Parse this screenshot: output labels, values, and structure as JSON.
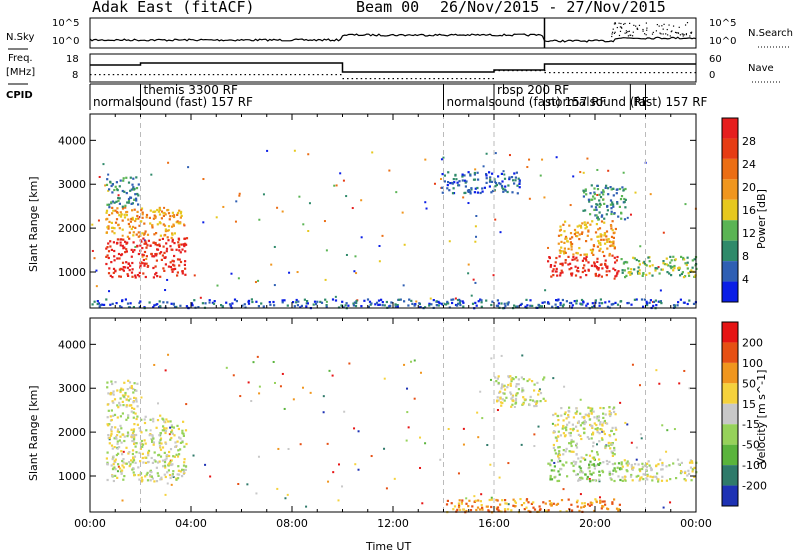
{
  "header": {
    "title": "Adak East (fitACF)",
    "beam": "Beam 00",
    "dates": "26/Nov/2015 - 27/Nov/2015"
  },
  "panels": {
    "nsky": {
      "left_label": "N.Sky",
      "right_label": "N.Search",
      "ticks": [
        "10^5",
        "10^0"
      ],
      "right_ticks": [
        "10^5",
        "10^0"
      ]
    },
    "freq": {
      "left_label": "Freq.",
      "left_unit": "[MHz]",
      "right_label": "Nave",
      "left_ticks": [
        "18",
        "8"
      ],
      "right_ticks": [
        "60",
        "0"
      ]
    },
    "cpid": {
      "label": "CPID"
    }
  },
  "cpid_entries": [
    {
      "text": "themis 3300 RF",
      "time": 2.0,
      "row": 1
    },
    {
      "text": "normalsound (fast) 157 RF",
      "time": 0.0,
      "row": 2
    },
    {
      "text": "rbsp 200 RF",
      "time": 16.0,
      "row": 1
    },
    {
      "text": "normalsound (fast) 157 RF",
      "time": 14.0,
      "row": 2
    },
    {
      "text": "normalsound (fast) 157 RF",
      "time": 18.0,
      "row": 2
    },
    {
      "text": "RF",
      "time": 21.4,
      "row": 2
    }
  ],
  "colors": {
    "power": [
      "#0a1ee6",
      "#2f5fb3",
      "#2f8a6a",
      "#5ab454",
      "#e6c81e",
      "#f0961e",
      "#eb6e14",
      "#e63c14",
      "#e61e1e"
    ],
    "velocity": [
      "#1e32b4",
      "#2f7a6a",
      "#5ab43c",
      "#96d25a",
      "#c8c8c8",
      "#f5d23c",
      "#f0961e",
      "#e65014",
      "#e61414"
    ]
  },
  "chart_data": [
    {
      "type": "heatmap",
      "name": "power",
      "xlabel": "Time UT",
      "ylabel": "Slant Range [km]",
      "colorbar_label": "Power [dB]",
      "colorbar_ticks": [
        4,
        8,
        12,
        16,
        20,
        24,
        28
      ],
      "x_ticks": [
        "00:00",
        "04:00",
        "08:00",
        "12:00",
        "16:00",
        "20:00",
        "00:00"
      ],
      "xlim": [
        0,
        24
      ],
      "ylim": [
        180,
        4600
      ],
      "y_ticks": [
        1000,
        2000,
        3000,
        4000
      ],
      "regions": [
        {
          "t": [
            0.6,
            3.8
          ],
          "r": [
            900,
            1800
          ],
          "level": 8
        },
        {
          "t": [
            0.6,
            3.6
          ],
          "r": [
            1800,
            2500
          ],
          "level": 5
        },
        {
          "t": [
            0.6,
            1.9
          ],
          "r": [
            2500,
            3200
          ],
          "level": 2
        },
        {
          "t": [
            13.9,
            17.0
          ],
          "r": [
            2800,
            3300
          ],
          "level": 1
        },
        {
          "t": [
            18.1,
            20.9
          ],
          "r": [
            900,
            1400
          ],
          "level": 8
        },
        {
          "t": [
            18.5,
            20.8
          ],
          "r": [
            1400,
            2200
          ],
          "level": 5
        },
        {
          "t": [
            19.5,
            21.2
          ],
          "r": [
            2200,
            3000
          ],
          "level": 2
        },
        {
          "t": [
            21.0,
            24.0
          ],
          "r": [
            900,
            1400
          ],
          "level": 3
        },
        {
          "t": [
            0.0,
            24.0
          ],
          "r": [
            200,
            400
          ],
          "level": 1
        }
      ]
    },
    {
      "type": "heatmap",
      "name": "velocity",
      "xlabel": "Time UT",
      "ylabel": "Slant Range [km]",
      "colorbar_label": "Velocity [m s^-1]",
      "colorbar_ticks": [
        200,
        100,
        50,
        15,
        -15,
        -50,
        -100,
        -200
      ],
      "x_ticks": [
        "00:00",
        "04:00",
        "08:00",
        "12:00",
        "16:00",
        "20:00",
        "00:00"
      ],
      "xlim": [
        0,
        24
      ],
      "ylim": [
        180,
        4600
      ],
      "y_ticks": [
        1000,
        2000,
        3000,
        4000
      ],
      "regions": [
        {
          "t": [
            0.6,
            3.8
          ],
          "r": [
            900,
            2400
          ],
          "level": 4
        },
        {
          "t": [
            0.6,
            1.9
          ],
          "r": [
            2400,
            3200
          ],
          "level": 4
        },
        {
          "t": [
            16.0,
            18.0
          ],
          "r": [
            2600,
            3300
          ],
          "level": 4
        },
        {
          "t": [
            18.1,
            21.0
          ],
          "r": [
            900,
            1400
          ],
          "level": 3
        },
        {
          "t": [
            18.3,
            20.8
          ],
          "r": [
            1400,
            2600
          ],
          "level": 4
        },
        {
          "t": [
            21.0,
            24.0
          ],
          "r": [
            900,
            1400
          ],
          "level": 4
        },
        {
          "t": [
            14.0,
            21.0
          ],
          "r": [
            200,
            500
          ],
          "level": 6
        }
      ]
    }
  ]
}
